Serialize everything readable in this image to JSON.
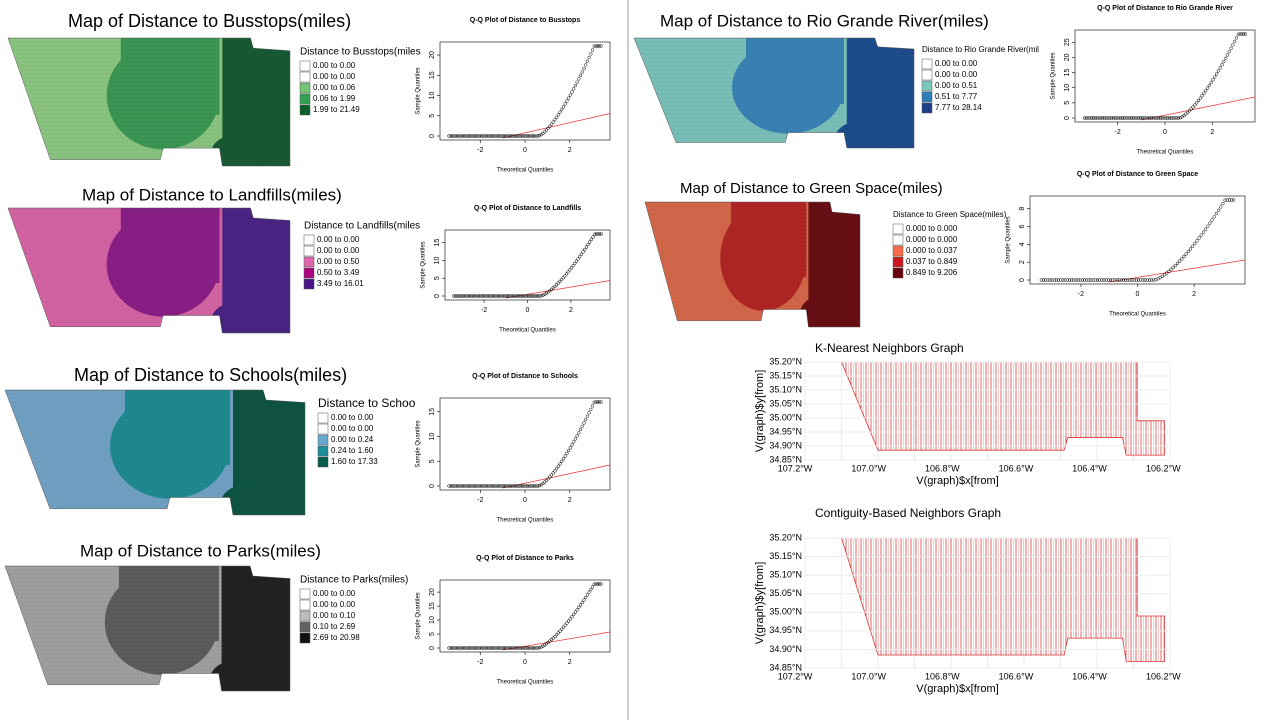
{
  "panels": [
    {
      "map_title": "Map of Distance to Busstops(miles)",
      "legend_title": "Distance to Busstops(miles",
      "legend_items": [
        "0.00 to 0.00",
        "0.00 to 0.00",
        "0.00 to 0.06",
        "0.06 to 1.99",
        "1.99 to 21.49"
      ],
      "colors": [
        "#ffffff",
        "#ffffff",
        "#74c476",
        "#31a354",
        "#0b5e2c"
      ],
      "map_colors": [
        "#8ec983",
        "#3c9a55",
        "#175c34"
      ],
      "qq_title": "Q-Q Plot of Distance to Busstops",
      "qq_xlabel": "Theoretical Quantiles",
      "qq_ylabel": "Sample Quantiles",
      "qq_xticks": [
        "-2",
        "0",
        "2"
      ],
      "qq_yticks": [
        "0",
        "5",
        "10",
        "15",
        "20"
      ]
    },
    {
      "map_title": "Map of Distance to Landfills(miles)",
      "legend_title": "Distance to Landfills(miles",
      "legend_items": [
        "0.00 to 0.00",
        "0.00 to 0.00",
        "0.00 to 0.50",
        "0.50 to 3.49",
        "3.49 to 16.01"
      ],
      "colors": [
        "#ffffff",
        "#ffffff",
        "#df65b0",
        "#ae017e",
        "#4a1486"
      ],
      "map_colors": [
        "#d966a8",
        "#8e1f8a",
        "#4b2587"
      ],
      "qq_title": "Q-Q Plot of Distance to Landfills",
      "qq_xlabel": "Theoretical Quantiles",
      "qq_ylabel": "Sample Quantiles",
      "qq_xticks": [
        "-2",
        "0",
        "2"
      ],
      "qq_yticks": [
        "0",
        "5",
        "10",
        "15"
      ]
    },
    {
      "map_title": "Map of Distance to Schools(miles)",
      "legend_title": "Distance to Schoo",
      "legend_items": [
        "0.00 to 0.00",
        "0.00 to 0.00",
        "0.00 to 0.24",
        "0.24 to 1.60",
        "1.60 to 17.33"
      ],
      "colors": [
        "#ffffff",
        "#ffffff",
        "#67a9cf",
        "#1c9099",
        "#015a4a"
      ],
      "map_colors": [
        "#73a5c8",
        "#1f8d93",
        "#0f5645"
      ],
      "qq_title": "Q-Q Plot of Distance to Schools",
      "qq_xlabel": "Theoretical Quantiles",
      "qq_ylabel": "Sample Quantiles",
      "qq_xticks": [
        "-2",
        "0",
        "2"
      ],
      "qq_yticks": [
        "0",
        "5",
        "10",
        "15"
      ]
    },
    {
      "map_title": "Map of Distance to Parks(miles)",
      "legend_title": "Distance to Parks(miles)",
      "legend_items": [
        "0.00 to 0.00",
        "0.00 to 0.00",
        "0.00 to 0.10",
        "0.10 to 2.69",
        "2.69 to 20.98"
      ],
      "colors": [
        "#ffffff",
        "#ffffff",
        "#bdbdbd",
        "#636363",
        "#111111"
      ],
      "map_colors": [
        "#a3a3a3",
        "#5e5e5e",
        "#232323"
      ],
      "qq_title": "Q-Q Plot of Distance to Parks",
      "qq_xlabel": "Theoretical Quantiles",
      "qq_ylabel": "Sample Quantiles",
      "qq_xticks": [
        "-2",
        "0",
        "2"
      ],
      "qq_yticks": [
        "0",
        "5",
        "10",
        "15",
        "20"
      ]
    },
    {
      "map_title": "Map of Distance to Rio Grande River(miles)",
      "legend_title": "Distance to Rio Grande River(mil",
      "legend_items": [
        "0.00 to 0.00",
        "0.00 to 0.00",
        "0.00 to 0.51",
        "0.51 to 7.77",
        "7.77 to 28.14"
      ],
      "colors": [
        "#ffffff",
        "#ffffff",
        "#7cc6c1",
        "#2c7fb8",
        "#1d3f8a"
      ],
      "map_colors": [
        "#7cc4bd",
        "#3b86b8",
        "#1f4f91"
      ],
      "qq_title": "Q-Q Plot of Distance to Rio Grande River",
      "qq_xlabel": "Theoretical Quantiles",
      "qq_ylabel": "Sample Quantiles",
      "qq_xticks": [
        "-2",
        "0",
        "2"
      ],
      "qq_yticks": [
        "0",
        "5",
        "10",
        "15",
        "20",
        "25"
      ]
    },
    {
      "map_title": "Map of Distance to Green Space(miles)",
      "legend_title": "Distance to Green Space(miles)",
      "legend_items": [
        "0.000 to 0.000",
        "0.000 to 0.000",
        "0.000 to 0.037",
        "0.037 to 0.849",
        "0.849 to 9.206"
      ],
      "colors": [
        "#ffffff",
        "#ffffff",
        "#fc6a4a",
        "#cb181d",
        "#67000d"
      ],
      "map_colors": [
        "#d9694a",
        "#b52626",
        "#6a0f14"
      ],
      "qq_title": "Q-Q Plot of Distance to Green Space",
      "qq_xlabel": "Theoretical Quantiles",
      "qq_ylabel": "Sample Quantiles",
      "qq_xticks": [
        "-2",
        "0",
        "2"
      ],
      "qq_yticks": [
        "0",
        "2",
        "4",
        "6",
        "8"
      ]
    }
  ],
  "graphs": [
    {
      "title": "K-Nearest Neighbors Graph",
      "xlabel": "V(graph)$x[from]",
      "ylabel": "V(graph)$y[from]",
      "xticks": [
        "107.2°W",
        "107.0°W",
        "106.8°W",
        "106.6°W",
        "106.4°W",
        "106.2°W"
      ],
      "yticks": [
        "35.20°N",
        "35.15°N",
        "35.10°N",
        "35.05°N",
        "35.00°N",
        "34.95°N",
        "34.90°N",
        "34.85°N"
      ]
    },
    {
      "title": "Contiguity-Based Neighbors Graph",
      "xlabel": "V(graph)$x[from]",
      "ylabel": "V(graph)$y[from]",
      "xticks": [
        "107.2°W",
        "107.0°W",
        "106.8°W",
        "106.6°W",
        "106.4°W",
        "106.2°W"
      ],
      "yticks": [
        "35.20°N",
        "35.15°N",
        "35.10°N",
        "35.05°N",
        "35.00°N",
        "34.95°N",
        "34.90°N",
        "34.85°N"
      ]
    }
  ]
}
